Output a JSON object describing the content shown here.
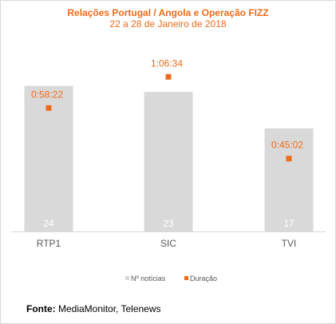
{
  "chart_data": {
    "type": "bar+scatter",
    "title": "Relações Portugal / Angola e Operação FIZZ",
    "subtitle": "22 a 28 de Janeiro de 2018",
    "categories": [
      "RTP1",
      "SIC",
      "TVI"
    ],
    "series": [
      {
        "name": "Nº notícias",
        "type": "bar",
        "values": [
          24,
          23,
          17
        ],
        "color": "#d9d9d9"
      },
      {
        "name": "Duração",
        "type": "scatter",
        "values": [
          "0:58:22",
          "1:06:34",
          "0:45:02"
        ],
        "color": "#ee6b1a"
      }
    ],
    "legend_position": "bottom",
    "grid": false
  },
  "source": {
    "label": "Fonte:",
    "text": "MediaMonitor, Telenews"
  }
}
